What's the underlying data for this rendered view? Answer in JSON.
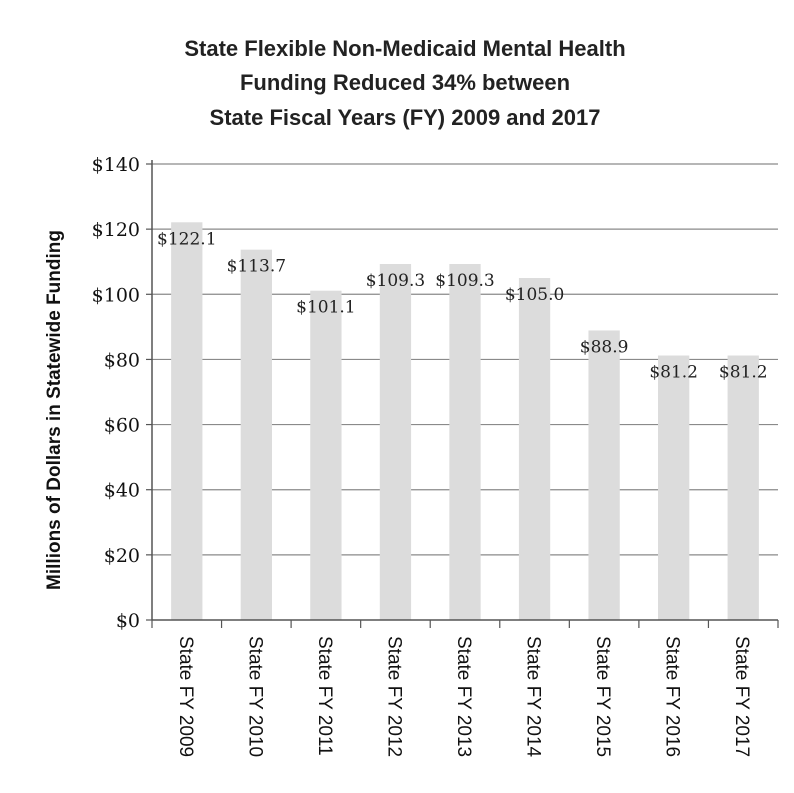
{
  "chart_data": {
    "type": "bar",
    "title_lines": [
      "State Flexible Non-Medicaid Mental Health",
      "Funding Reduced 34% between",
      "State Fiscal Years (FY) 2009 and 2017"
    ],
    "ylabel": "Millions of Dollars in Statewide Funding",
    "xlabel": "",
    "categories": [
      "State FY 2009",
      "State FY 2010",
      "State FY 2011",
      "State FY 2012",
      "State FY 2013",
      "State FY 2014",
      "State FY 2015",
      "State FY 2016",
      "State FY 2017"
    ],
    "values": [
      122.1,
      113.7,
      101.1,
      109.3,
      109.3,
      105.0,
      88.9,
      81.2,
      81.2
    ],
    "data_labels": [
      "$122.1",
      "$113.7",
      "$101.1",
      "$109.3",
      "$109.3",
      "$105.0",
      "$88.9",
      "$81.2",
      "$81.2"
    ],
    "ylim": [
      0,
      140
    ],
    "yticks": [
      0,
      20,
      40,
      60,
      80,
      100,
      120,
      140
    ],
    "ytick_labels": [
      "$0",
      "$20",
      "$40",
      "$60",
      "$80",
      "$100",
      "$120",
      "$140"
    ],
    "grid": true,
    "bar_color": "#dcdcdc",
    "grid_color": "#8a8a8a"
  }
}
